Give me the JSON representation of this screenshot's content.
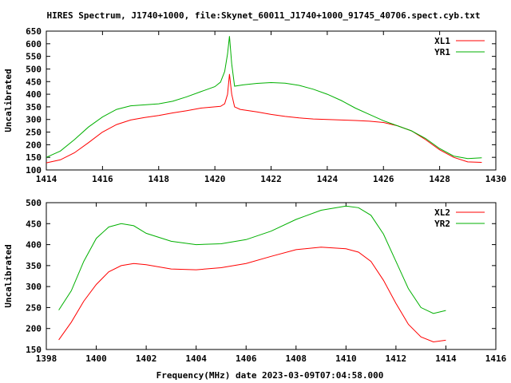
{
  "title": "HIRES Spectrum, J1740+1000, file:Skynet_60011_J1740+1000_91745_40706.spect.cyb.txt",
  "xlabel": "Frequency(MHz) date 2023-03-09T07:04:58.000",
  "chart_data": [
    {
      "type": "line",
      "ylabel": "Uncalibrated",
      "xlim": [
        1414,
        1430
      ],
      "ylim": [
        100,
        650
      ],
      "xticks": [
        1414,
        1416,
        1418,
        1420,
        1422,
        1424,
        1426,
        1428,
        1430
      ],
      "yticks": [
        100,
        150,
        200,
        250,
        300,
        350,
        400,
        450,
        500,
        550,
        600,
        650
      ],
      "grid": false,
      "legend_position": "top-right",
      "series": [
        {
          "name": "XL1",
          "color": "#ff0000",
          "x": [
            1414.0,
            1414.5,
            1415.0,
            1415.5,
            1416.0,
            1416.5,
            1417.0,
            1417.5,
            1418.0,
            1418.5,
            1419.0,
            1419.5,
            1420.0,
            1420.2,
            1420.35,
            1420.45,
            1420.52,
            1420.6,
            1420.7,
            1420.9,
            1421.5,
            1422.0,
            1422.5,
            1423.0,
            1423.5,
            1424.0,
            1424.5,
            1425.0,
            1425.5,
            1426.0,
            1426.5,
            1427.0,
            1427.5,
            1428.0,
            1428.5,
            1429.0,
            1429.5
          ],
          "values": [
            128,
            140,
            168,
            208,
            250,
            280,
            298,
            308,
            316,
            326,
            335,
            345,
            350,
            352,
            362,
            400,
            480,
            400,
            350,
            340,
            330,
            320,
            312,
            306,
            302,
            300,
            298,
            296,
            293,
            288,
            275,
            255,
            220,
            180,
            150,
            132,
            130
          ]
        },
        {
          "name": "YR1",
          "color": "#00b000",
          "x": [
            1414.0,
            1414.5,
            1415.0,
            1415.5,
            1416.0,
            1416.5,
            1417.0,
            1417.5,
            1418.0,
            1418.5,
            1419.0,
            1419.5,
            1420.0,
            1420.2,
            1420.35,
            1420.45,
            1420.52,
            1420.6,
            1420.7,
            1421.0,
            1421.5,
            1422.0,
            1422.5,
            1423.0,
            1423.5,
            1424.0,
            1424.5,
            1425.0,
            1425.5,
            1426.0,
            1426.5,
            1427.0,
            1427.5,
            1428.0,
            1428.5,
            1429.0,
            1429.5
          ],
          "values": [
            150,
            175,
            220,
            270,
            310,
            340,
            354,
            358,
            362,
            372,
            390,
            410,
            430,
            448,
            490,
            560,
            630,
            520,
            432,
            437,
            443,
            446,
            444,
            435,
            420,
            400,
            375,
            345,
            320,
            295,
            275,
            255,
            225,
            185,
            155,
            145,
            148
          ]
        }
      ]
    },
    {
      "type": "line",
      "ylabel": "Uncalibrated",
      "xlim": [
        1398,
        1416
      ],
      "ylim": [
        150,
        500
      ],
      "xticks": [
        1398,
        1400,
        1402,
        1404,
        1406,
        1408,
        1410,
        1412,
        1414,
        1416
      ],
      "yticks": [
        150,
        200,
        250,
        300,
        350,
        400,
        450,
        500
      ],
      "grid": false,
      "legend_position": "top-right",
      "series": [
        {
          "name": "XL2",
          "color": "#ff0000",
          "x": [
            1398.5,
            1399.0,
            1399.5,
            1400.0,
            1400.5,
            1401.0,
            1401.5,
            1402.0,
            1403.0,
            1404.0,
            1405.0,
            1406.0,
            1407.0,
            1408.0,
            1409.0,
            1410.0,
            1410.5,
            1411.0,
            1411.5,
            1412.0,
            1412.5,
            1413.0,
            1413.5,
            1414.0
          ],
          "values": [
            173,
            215,
            265,
            305,
            335,
            350,
            355,
            352,
            342,
            340,
            345,
            355,
            372,
            388,
            394,
            390,
            382,
            360,
            315,
            260,
            210,
            180,
            168,
            172
          ]
        },
        {
          "name": "YR2",
          "color": "#00b000",
          "x": [
            1398.5,
            1399.0,
            1399.5,
            1400.0,
            1400.5,
            1401.0,
            1401.5,
            1402.0,
            1403.0,
            1404.0,
            1405.0,
            1406.0,
            1407.0,
            1408.0,
            1409.0,
            1410.0,
            1410.5,
            1411.0,
            1411.5,
            1412.0,
            1412.5,
            1413.0,
            1413.5,
            1414.0
          ],
          "values": [
            244,
            290,
            360,
            415,
            442,
            450,
            445,
            427,
            408,
            400,
            402,
            412,
            432,
            460,
            482,
            492,
            488,
            470,
            425,
            360,
            295,
            250,
            236,
            243
          ]
        }
      ]
    }
  ]
}
